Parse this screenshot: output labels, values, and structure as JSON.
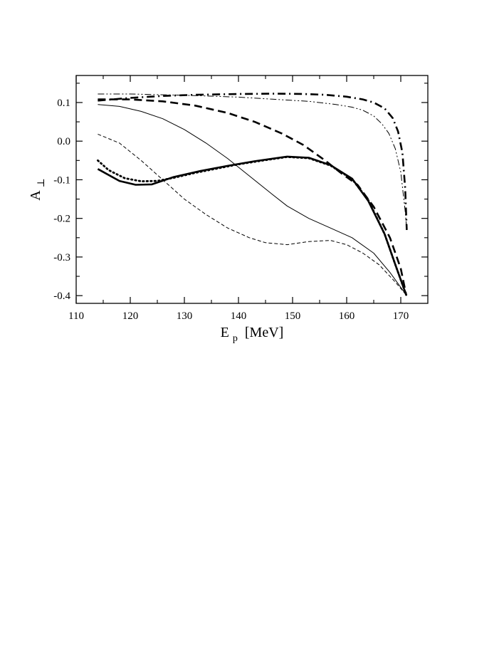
{
  "chart_data": {
    "type": "line",
    "xlabel": "E",
    "xlabel_sub": "p",
    "xlabel_unit": " [MeV]",
    "ylabel": "A",
    "ylabel_sub": "⊥",
    "xlim": [
      110,
      175
    ],
    "ylim": [
      -0.42,
      0.17
    ],
    "xticks": [
      110,
      120,
      130,
      140,
      150,
      160,
      170
    ],
    "yticks": [
      0.1,
      0.0,
      -0.1,
      -0.2,
      -0.3,
      -0.4
    ],
    "ytick_labels": [
      "0.1",
      "0.0",
      "-0.1",
      "-0.2",
      "-0.3",
      "-0.4"
    ],
    "grid": false,
    "legend": "none",
    "series": [
      {
        "style": "thick-solid",
        "x": [
          114,
          118,
          121,
          124,
          128,
          133,
          138,
          143,
          149,
          153,
          157,
          161,
          164,
          167,
          169,
          171
        ],
        "y": [
          -0.072,
          -0.103,
          -0.113,
          -0.112,
          -0.093,
          -0.077,
          -0.064,
          -0.052,
          -0.04,
          -0.043,
          -0.062,
          -0.097,
          -0.155,
          -0.24,
          -0.32,
          -0.398
        ]
      },
      {
        "style": "thick-dotted",
        "x": [
          114,
          116,
          119,
          122,
          125,
          128,
          132,
          136,
          140,
          145,
          149,
          153,
          157,
          161,
          164,
          167,
          169,
          171
        ],
        "y": [
          -0.05,
          -0.075,
          -0.096,
          -0.104,
          -0.103,
          -0.095,
          -0.082,
          -0.071,
          -0.06,
          -0.049,
          -0.041,
          -0.044,
          -0.063,
          -0.098,
          -0.153,
          -0.24,
          -0.32,
          -0.398
        ]
      },
      {
        "style": "thick-dashed",
        "x": [
          114,
          120,
          126,
          132,
          138,
          143,
          148,
          152,
          156,
          159,
          162,
          165,
          168,
          170,
          171
        ],
        "y": [
          0.108,
          0.108,
          0.103,
          0.092,
          0.073,
          0.05,
          0.02,
          -0.01,
          -0.05,
          -0.083,
          -0.113,
          -0.17,
          -0.25,
          -0.33,
          -0.398
        ]
      },
      {
        "style": "thick-dashdot",
        "x": [
          114,
          120,
          126,
          132,
          140,
          147,
          152,
          156,
          160,
          163,
          165,
          167,
          168.5,
          169.5,
          170.3,
          170.8,
          171.1
        ],
        "y": [
          0.105,
          0.112,
          0.117,
          0.12,
          0.122,
          0.123,
          0.122,
          0.12,
          0.115,
          0.108,
          0.1,
          0.085,
          0.06,
          0.025,
          -0.03,
          -0.12,
          -0.23
        ]
      },
      {
        "style": "thin-solid",
        "x": [
          114,
          118,
          122,
          126,
          130,
          134,
          138,
          142,
          146,
          149,
          153,
          157,
          161,
          165,
          168,
          171
        ],
        "y": [
          0.095,
          0.09,
          0.077,
          0.058,
          0.03,
          -0.005,
          -0.045,
          -0.09,
          -0.135,
          -0.168,
          -0.2,
          -0.225,
          -0.25,
          -0.29,
          -0.34,
          -0.398
        ]
      },
      {
        "style": "thin-dashed",
        "x": [
          114,
          118,
          122,
          126,
          130,
          134,
          138,
          142,
          145,
          149,
          153,
          157,
          160,
          163,
          166,
          169,
          171
        ],
        "y": [
          0.018,
          -0.005,
          -0.05,
          -0.1,
          -0.15,
          -0.19,
          -0.225,
          -0.25,
          -0.263,
          -0.268,
          -0.26,
          -0.257,
          -0.268,
          -0.29,
          -0.32,
          -0.365,
          -0.398
        ]
      },
      {
        "style": "thin-dashdotdot",
        "x": [
          114,
          120,
          126,
          132,
          140,
          147,
          153,
          158,
          161,
          163,
          165,
          166.5,
          167.8,
          169,
          170,
          170.8,
          171.1
        ],
        "y": [
          0.122,
          0.122,
          0.12,
          0.118,
          0.114,
          0.108,
          0.103,
          0.095,
          0.088,
          0.08,
          0.065,
          0.045,
          0.02,
          -0.02,
          -0.08,
          -0.18,
          -0.23
        ]
      }
    ]
  }
}
